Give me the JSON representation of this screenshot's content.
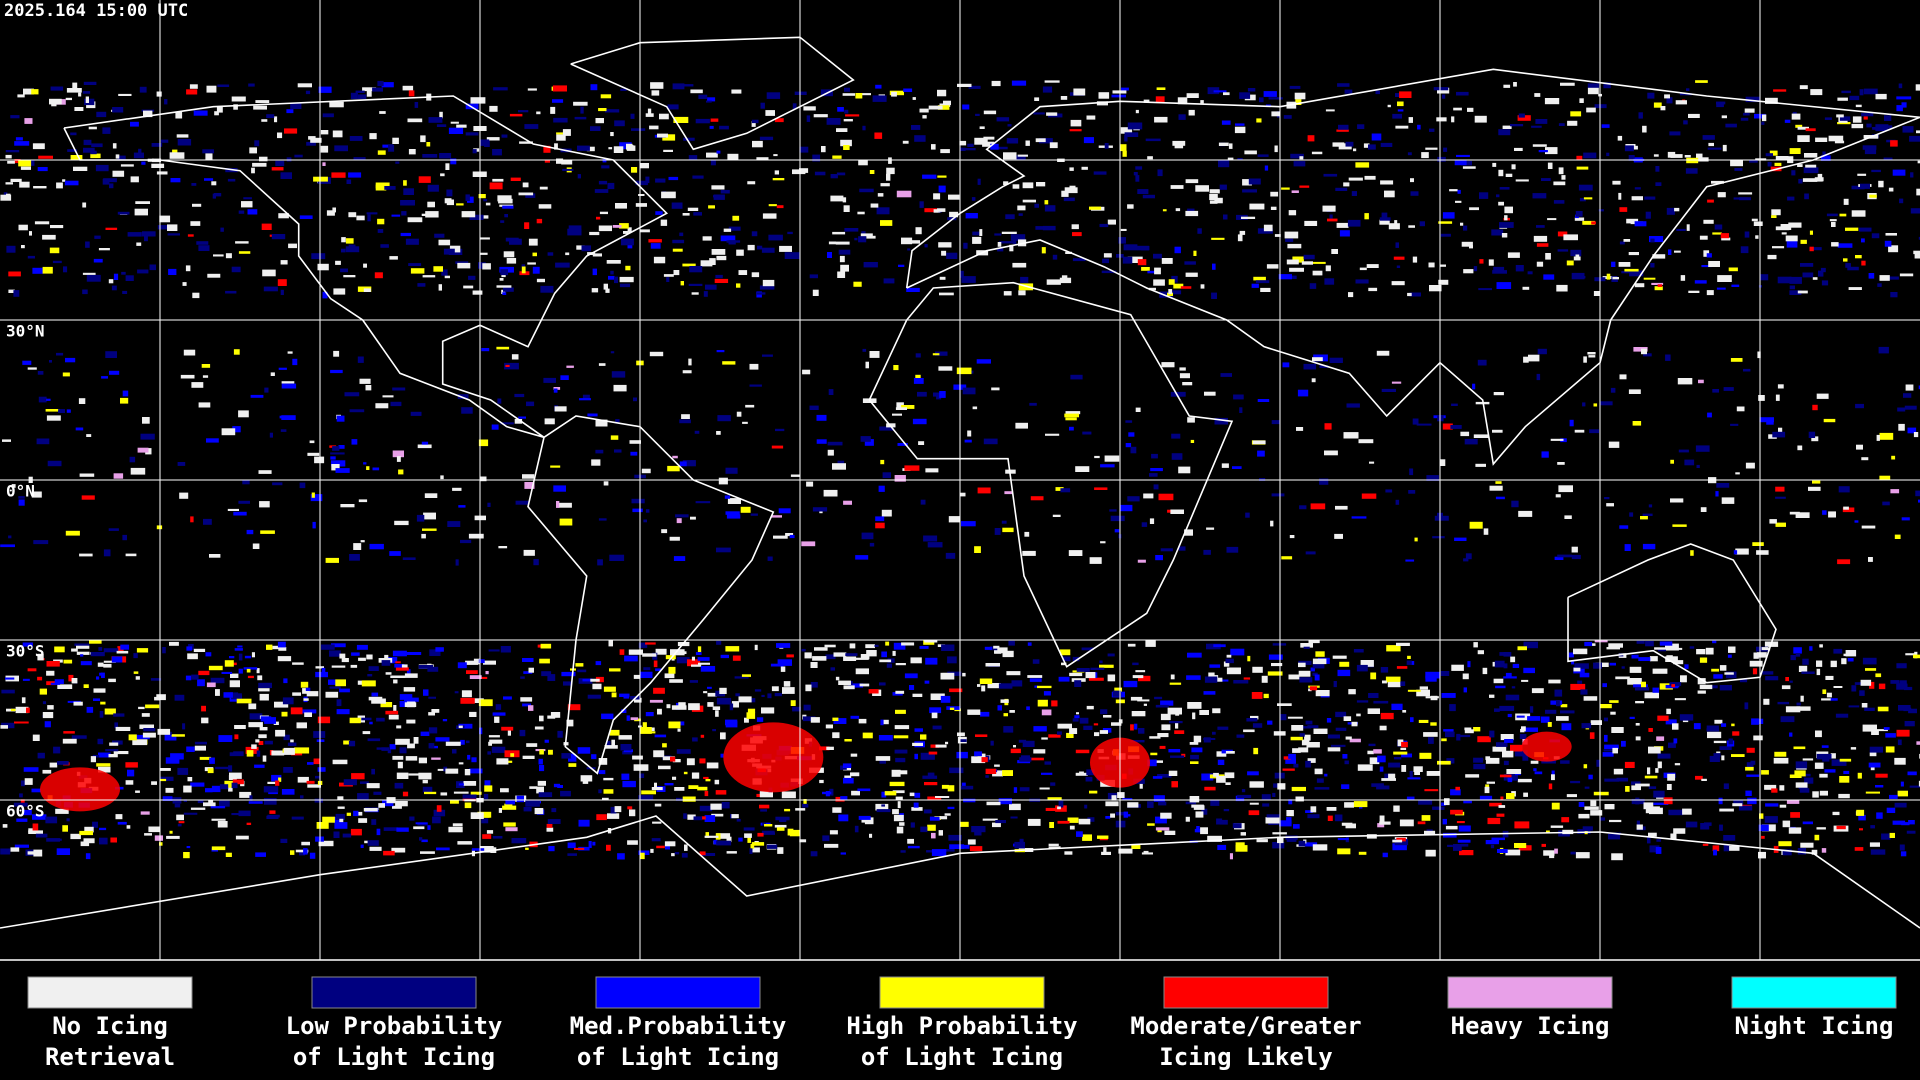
{
  "header": {
    "timestamp": "2025.164 15:00 UTC"
  },
  "map": {
    "latitude_labels": [
      "30°N",
      "0°N",
      "30°S",
      "60°S"
    ]
  },
  "legend": {
    "items": [
      {
        "lines": [
          "No Icing",
          "Retrieval"
        ],
        "color": "#f0f0f0"
      },
      {
        "lines": [
          "Low Probability",
          "of Light Icing"
        ],
        "color": "#000080"
      },
      {
        "lines": [
          "Med.Probability",
          "of Light Icing"
        ],
        "color": "#0000ff"
      },
      {
        "lines": [
          "High Probability",
          "of Light Icing"
        ],
        "color": "#ffff00"
      },
      {
        "lines": [
          "Moderate/Greater",
          "Icing Likely"
        ],
        "color": "#ff0000"
      },
      {
        "lines": [
          "Heavy Icing"
        ],
        "color": "#e8a0e8"
      },
      {
        "lines": [
          "Night Icing"
        ],
        "color": "#00ffff"
      }
    ]
  }
}
